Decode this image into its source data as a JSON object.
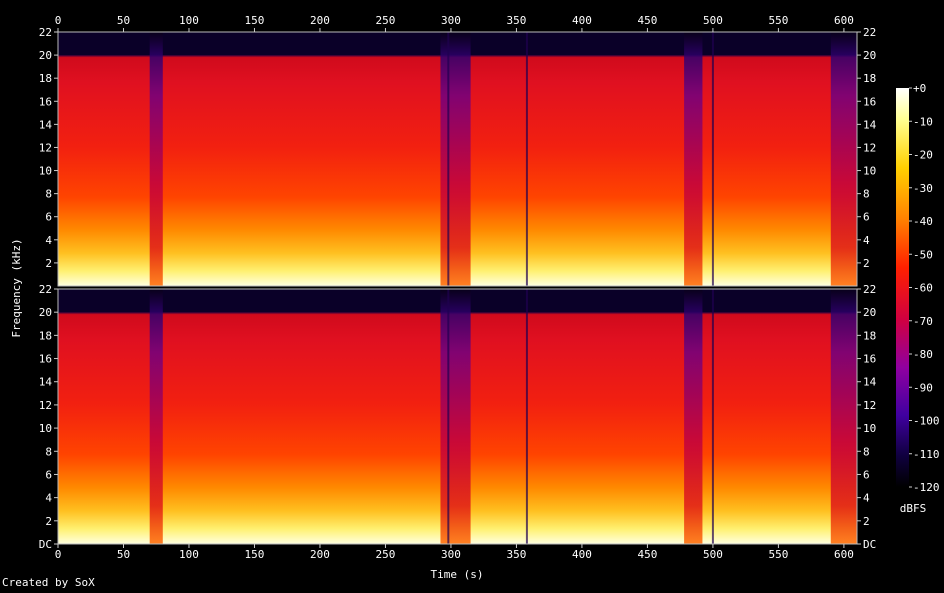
{
  "chart_data": {
    "type": "heatmap",
    "subtype": "spectrogram",
    "xlabel": "Time (s)",
    "ylabel": "Frequency (kHz)",
    "x_ticks": [
      "0",
      "50",
      "100",
      "150",
      "200",
      "250",
      "300",
      "350",
      "400",
      "450",
      "500",
      "550",
      "600"
    ],
    "y_ticks_upper": [
      "2",
      "4",
      "6",
      "8",
      "10",
      "12",
      "14",
      "16",
      "18",
      "20",
      "22"
    ],
    "y_ticks_lower": [
      "DC",
      "2",
      "4",
      "6",
      "8",
      "10",
      "12",
      "14",
      "16",
      "18",
      "20",
      "22"
    ],
    "xlim": [
      0,
      610
    ],
    "ylim_khz": [
      0,
      22
    ],
    "channels": 2,
    "colorbar": {
      "label": "dBFS",
      "ticks": [
        "+0",
        "-10",
        "-20",
        "-30",
        "-40",
        "-50",
        "-60",
        "-70",
        "-80",
        "-90",
        "-100",
        "-110",
        "-120"
      ],
      "range": [
        -120,
        0
      ]
    },
    "credit": "Created by SoX",
    "content_cutoff_khz": 20,
    "quiet_segments_s": [
      [
        70,
        80
      ],
      [
        292,
        315
      ],
      [
        478,
        492
      ],
      [
        590,
        610
      ]
    ],
    "dropouts_s": [
      298,
      358,
      500
    ]
  }
}
